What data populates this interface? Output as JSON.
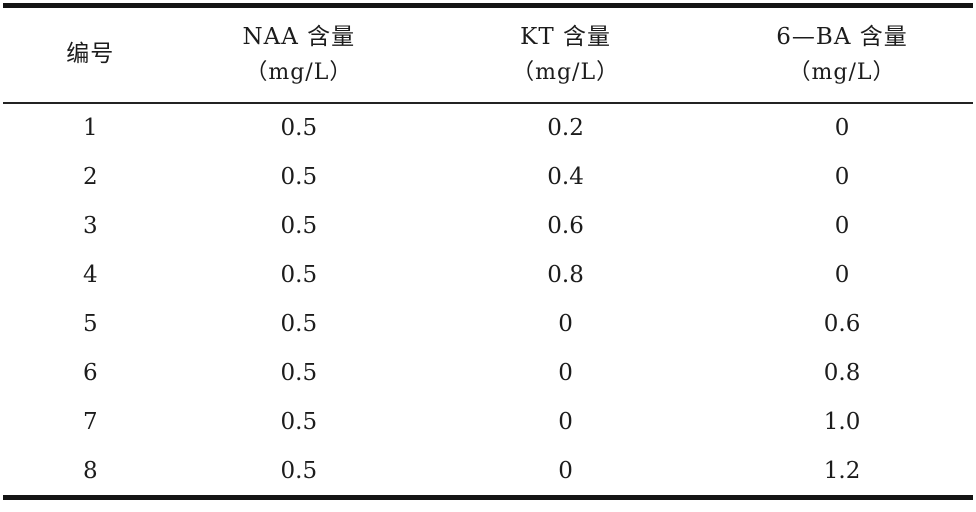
{
  "table": {
    "columns": [
      {
        "label": "编号",
        "unit": ""
      },
      {
        "label": "NAA 含量",
        "unit": "（mg/L）"
      },
      {
        "label": "KT 含量",
        "unit": "（mg/L）"
      },
      {
        "label": "6—BA 含量",
        "unit": "（mg/L）"
      }
    ],
    "rows": [
      [
        "1",
        "0.5",
        "0.2",
        "0"
      ],
      [
        "2",
        "0.5",
        "0.4",
        "0"
      ],
      [
        "3",
        "0.5",
        "0.6",
        "0"
      ],
      [
        "4",
        "0.5",
        "0.8",
        "0"
      ],
      [
        "5",
        "0.5",
        "0",
        "0.6"
      ],
      [
        "6",
        "0.5",
        "0",
        "0.8"
      ],
      [
        "7",
        "0.5",
        "0",
        "1.0"
      ],
      [
        "8",
        "0.5",
        "0",
        "1.2"
      ]
    ],
    "rules": {
      "top_rule_color": "#141414",
      "mid_rule_color": "#232323",
      "bottom_rule_color": "#141414"
    }
  },
  "chart_data": {
    "type": "table",
    "title": "",
    "columns": [
      "编号",
      "NAA 含量（mg/L）",
      "KT 含量（mg/L）",
      "6—BA 含量（mg/L）"
    ],
    "rows": [
      [
        1,
        0.5,
        0.2,
        0
      ],
      [
        2,
        0.5,
        0.4,
        0
      ],
      [
        3,
        0.5,
        0.6,
        0
      ],
      [
        4,
        0.5,
        0.8,
        0
      ],
      [
        5,
        0.5,
        0,
        0.6
      ],
      [
        6,
        0.5,
        0,
        0.8
      ],
      [
        7,
        0.5,
        0,
        1.0
      ],
      [
        8,
        0.5,
        0,
        1.2
      ]
    ]
  }
}
